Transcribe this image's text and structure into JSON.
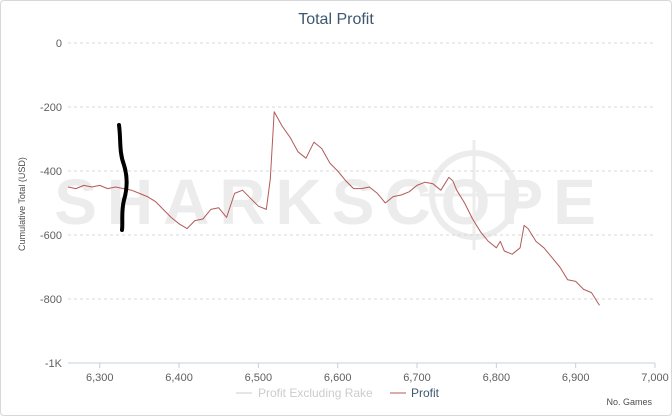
{
  "chart_data": {
    "type": "line",
    "title": "Total Profit",
    "ylabel": "Cumulative Total (USD)",
    "xlabel": "No. Games",
    "xlim": [
      6260,
      7000
    ],
    "ylim": [
      -1000,
      0
    ],
    "x_ticks": [
      6300,
      6400,
      6500,
      6600,
      6700,
      6800,
      6900,
      7000
    ],
    "x_tick_labels": [
      "6,300",
      "6,400",
      "6,500",
      "6,600",
      "6,700",
      "6,800",
      "6,900",
      "7,000"
    ],
    "y_ticks": [
      0,
      -200,
      -400,
      -600,
      -800,
      -1000
    ],
    "y_tick_labels": [
      "0",
      "-200",
      "-400",
      "-600",
      "-800",
      "-1K"
    ],
    "grid": true,
    "legend_position": "bottom-center",
    "watermark": "SHARKSCOPE",
    "series": [
      {
        "name": "Profit Excluding Rake",
        "color": "#cccccc",
        "visible": false,
        "x": [],
        "y": []
      },
      {
        "name": "Profit",
        "color": "#b45a5a",
        "visible": true,
        "x": [
          6260,
          6270,
          6280,
          6290,
          6300,
          6310,
          6320,
          6330,
          6340,
          6350,
          6360,
          6370,
          6380,
          6390,
          6400,
          6410,
          6420,
          6430,
          6440,
          6450,
          6460,
          6470,
          6480,
          6490,
          6500,
          6510,
          6515,
          6520,
          6530,
          6540,
          6550,
          6560,
          6570,
          6575,
          6580,
          6590,
          6600,
          6610,
          6620,
          6630,
          6640,
          6650,
          6660,
          6670,
          6680,
          6690,
          6700,
          6710,
          6720,
          6730,
          6735,
          6740,
          6745,
          6750,
          6760,
          6770,
          6780,
          6790,
          6800,
          6805,
          6810,
          6820,
          6830,
          6835,
          6840,
          6850,
          6860,
          6870,
          6880,
          6890,
          6900,
          6910,
          6920,
          6930
        ],
        "y": [
          -450,
          -455,
          -445,
          -450,
          -445,
          -455,
          -450,
          -455,
          -460,
          -470,
          -480,
          -495,
          -520,
          -545,
          -565,
          -580,
          -555,
          -550,
          -520,
          -515,
          -545,
          -470,
          -460,
          -485,
          -510,
          -520,
          -425,
          -215,
          -260,
          -295,
          -340,
          -360,
          -310,
          -320,
          -330,
          -375,
          -400,
          -430,
          -455,
          -455,
          -450,
          -470,
          -500,
          -480,
          -475,
          -465,
          -445,
          -435,
          -440,
          -460,
          -440,
          -420,
          -430,
          -460,
          -500,
          -550,
          -590,
          -620,
          -640,
          -620,
          -650,
          -660,
          -640,
          -570,
          -580,
          -620,
          -640,
          -670,
          -700,
          -740,
          -745,
          -770,
          -780,
          -820
        ]
      }
    ]
  }
}
